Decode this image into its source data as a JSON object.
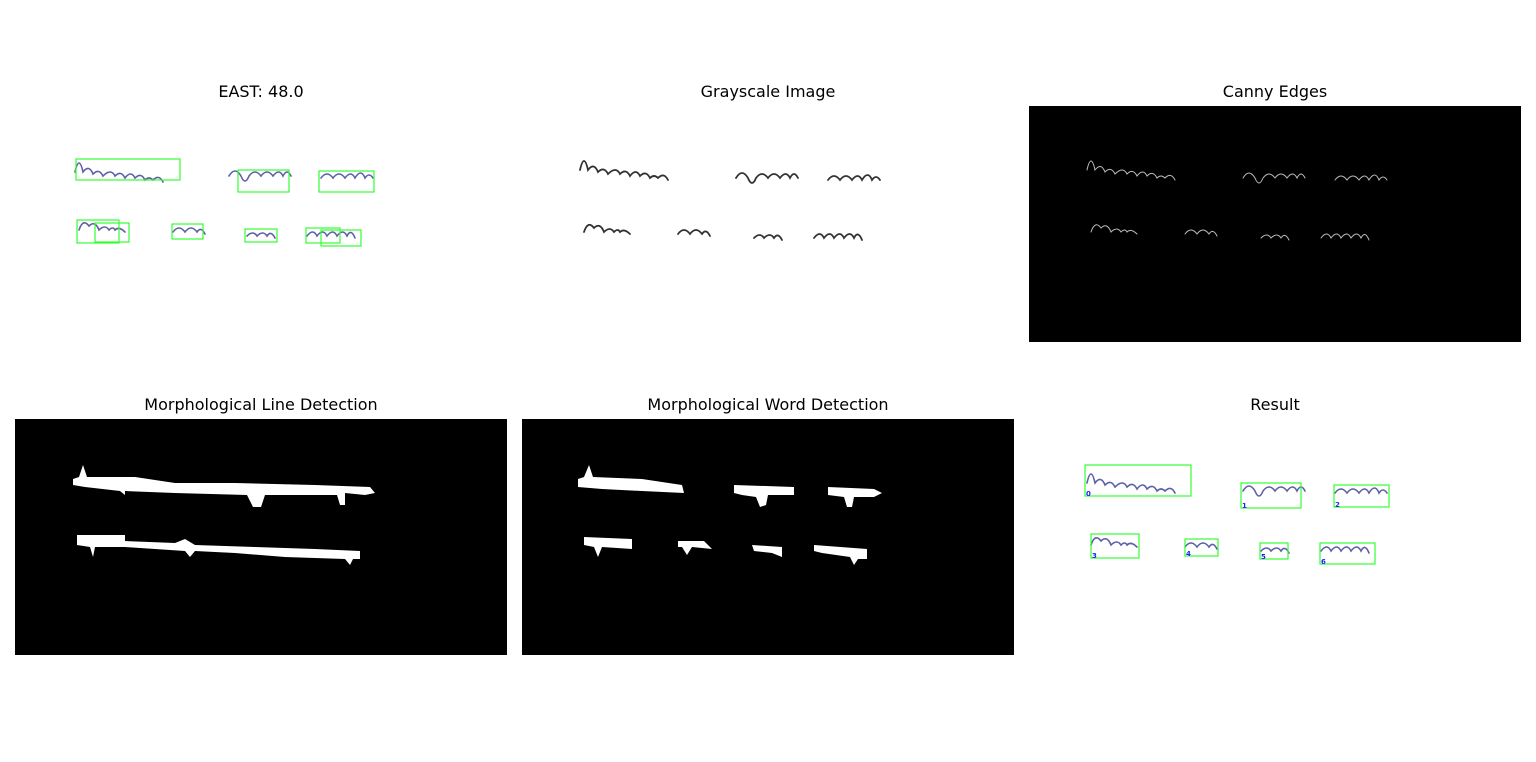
{
  "panels": [
    {
      "title": "EAST: 48.0"
    },
    {
      "title": "Grayscale Image"
    },
    {
      "title": "Canny Edges"
    },
    {
      "title": "Morphological Line Detection"
    },
    {
      "title": "Morphological Word Detection"
    },
    {
      "title": "Result"
    }
  ],
  "result_labels": [
    "0",
    "1",
    "2",
    "3",
    "4",
    "5",
    "6"
  ],
  "colors": {
    "box": "#33ff33",
    "ink_blue": "#5d5fa8",
    "ink_gray": "#333333",
    "label": "#1a1aff",
    "mask_bg": "#000000",
    "mask_fg": "#ffffff"
  }
}
